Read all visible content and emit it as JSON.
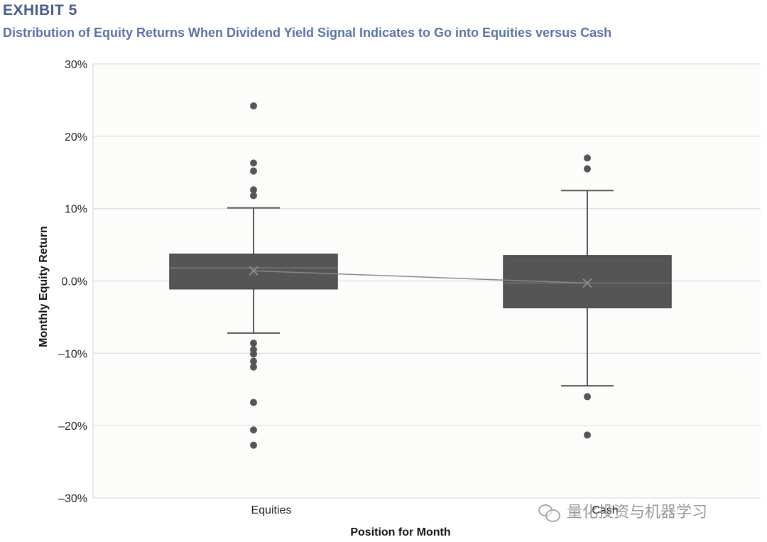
{
  "header": {
    "exhibit": "EXHIBIT 5",
    "subtitle": "Distribution of Equity Returns When Dividend Yield Signal Indicates to Go into Equities versus Cash"
  },
  "watermark": {
    "text": "量化投资与机器学习"
  },
  "colors": {
    "box": "#555555",
    "line": "#555555",
    "grid": "#dddddd",
    "plot_bg": "#fcfcfb"
  },
  "chart_data": {
    "type": "box",
    "xlabel": "Position for Month",
    "ylabel": "Monthly Equity Return",
    "ylim": [
      -0.3,
      0.3
    ],
    "yticks": [
      0.3,
      0.2,
      0.1,
      0.0,
      -0.1,
      -0.2,
      -0.3
    ],
    "ytick_labels": [
      "30%",
      "20%",
      "10%",
      "0.0%",
      "–10%",
      "–20%",
      "–30%"
    ],
    "grid": true,
    "mean_line": true,
    "categories": [
      "Equities",
      "Cash"
    ],
    "boxes": [
      {
        "category": "Equities",
        "q1": -0.011,
        "median": 0.018,
        "q3": 0.037,
        "whisker_low": -0.072,
        "whisker_high": 0.101,
        "mean": 0.014,
        "outliers": [
          0.242,
          0.163,
          0.152,
          0.126,
          0.118,
          -0.086,
          -0.095,
          -0.101,
          -0.111,
          -0.119,
          -0.168,
          -0.206,
          -0.227
        ]
      },
      {
        "category": "Cash",
        "q1": -0.037,
        "median": -0.003,
        "q3": 0.035,
        "whisker_low": -0.145,
        "whisker_high": 0.125,
        "mean": -0.003,
        "outliers": [
          0.17,
          0.155,
          -0.16,
          -0.213
        ]
      }
    ]
  }
}
